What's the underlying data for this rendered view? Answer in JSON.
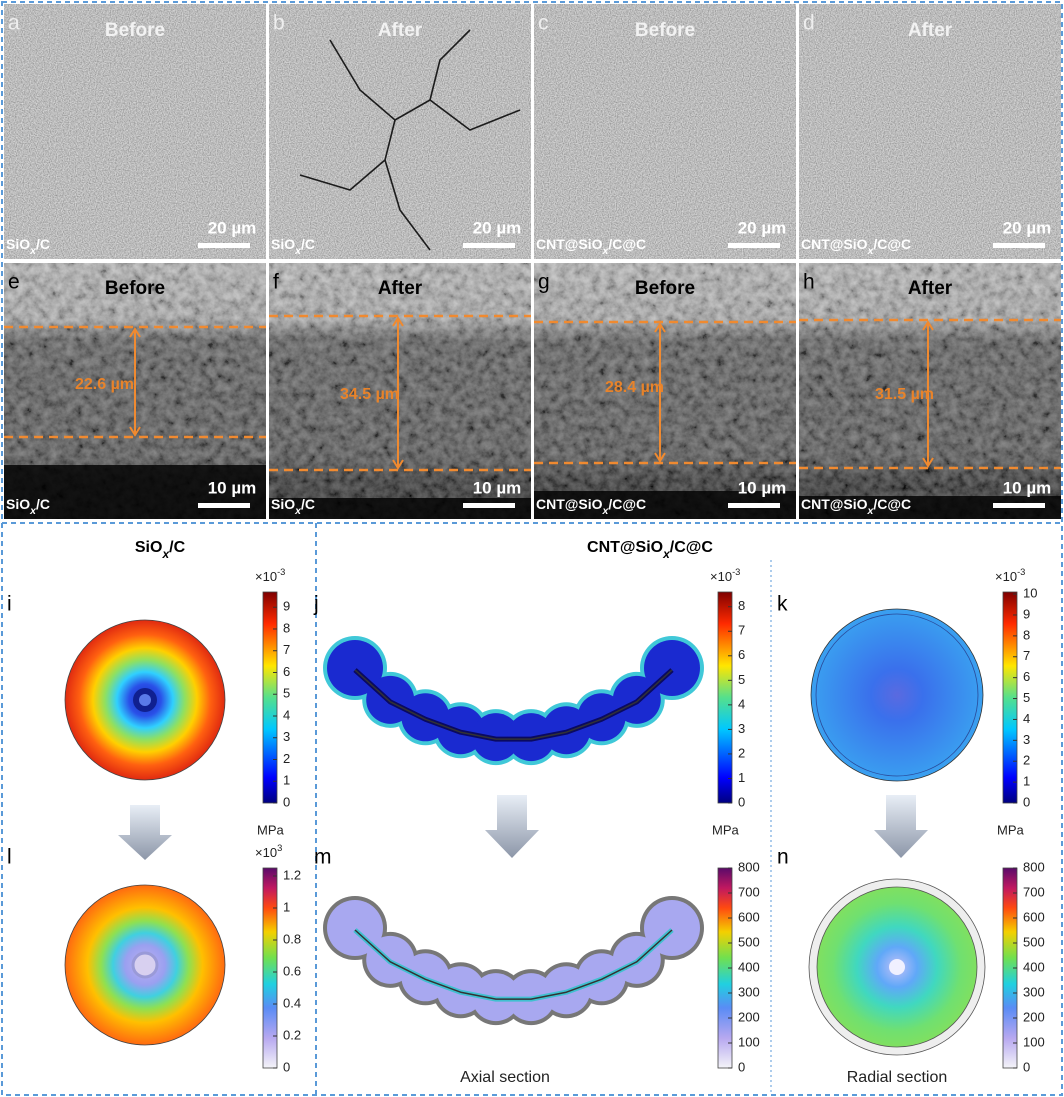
{
  "sem_panels": [
    {
      "letter": "a",
      "state": "Before",
      "sample": {
        "pre": "SiO",
        "sub": "x",
        "post": "/C"
      },
      "scale_bar": "20 µm"
    },
    {
      "letter": "b",
      "state": "After",
      "sample": {
        "pre": "SiO",
        "sub": "x",
        "post": "/C"
      },
      "scale_bar": "20 µm"
    },
    {
      "letter": "c",
      "state": "Before",
      "sample": {
        "pre": "CNT@SiO",
        "sub": "x",
        "post": "/C@C"
      },
      "scale_bar": "20 µm"
    },
    {
      "letter": "d",
      "state": "After",
      "sample": {
        "pre": "CNT@SiO",
        "sub": "x",
        "post": "/C@C"
      },
      "scale_bar": "20 µm"
    },
    {
      "letter": "e",
      "state": "Before",
      "sample": {
        "pre": "SiO",
        "sub": "x",
        "post": "/C"
      },
      "scale_bar": "10 µm",
      "thickness": "22.6 µm"
    },
    {
      "letter": "f",
      "state": "After",
      "sample": {
        "pre": "SiO",
        "sub": "x",
        "post": "/C"
      },
      "scale_bar": "10 µm",
      "thickness": "34.5 µm"
    },
    {
      "letter": "g",
      "state": "Before",
      "sample": {
        "pre": "CNT@SiO",
        "sub": "x",
        "post": "/C@C"
      },
      "scale_bar": "10 µm",
      "thickness": "28.4 µm"
    },
    {
      "letter": "h",
      "state": "After",
      "sample": {
        "pre": "CNT@SiO",
        "sub": "x",
        "post": "/C@C"
      },
      "scale_bar": "10 µm",
      "thickness": "31.5 µm"
    }
  ],
  "simulation": {
    "group_titles": [
      {
        "pre": "SiO",
        "sub": "x",
        "post": "/C"
      },
      {
        "pre": "CNT@SiO",
        "sub": "x",
        "post": "/C@C"
      }
    ],
    "panels": [
      {
        "letter": "i",
        "colorbar": {
          "lim": [
            0,
            9.7
          ],
          "ticks": [
            0,
            1,
            2,
            3,
            4,
            5,
            6,
            7,
            8,
            9
          ],
          "multiplier": {
            "base": "×10",
            "exp": "-3"
          },
          "unit": "MPa"
        }
      },
      {
        "letter": "j",
        "colorbar": {
          "lim": [
            0,
            8.6
          ],
          "ticks": [
            0,
            1,
            2,
            3,
            4,
            5,
            6,
            7,
            8
          ],
          "multiplier": {
            "base": "×10",
            "exp": "-3"
          },
          "unit": "MPa"
        }
      },
      {
        "letter": "k",
        "colorbar": {
          "lim": [
            0,
            10.1
          ],
          "ticks": [
            0,
            1,
            2,
            3,
            4,
            5,
            6,
            7,
            8,
            9,
            10
          ],
          "multiplier": {
            "base": "×10",
            "exp": "-3"
          },
          "unit": "MPa"
        }
      },
      {
        "letter": "l",
        "colorbar": {
          "lim": [
            0,
            1.25
          ],
          "ticks": [
            0,
            0.2,
            0.4,
            0.6,
            0.8,
            1,
            1.2
          ],
          "multiplier": {
            "base": "×10",
            "exp": "3"
          }
        }
      },
      {
        "letter": "m",
        "colorbar": {
          "lim": [
            0,
            800
          ],
          "ticks": [
            0,
            100,
            200,
            300,
            400,
            500,
            600,
            700,
            800
          ]
        },
        "caption": "Axial section"
      },
      {
        "letter": "n",
        "colorbar": {
          "lim": [
            0,
            800
          ],
          "ticks": [
            0,
            100,
            200,
            300,
            400,
            500,
            600,
            700,
            800
          ]
        },
        "caption": "Radial section"
      }
    ]
  }
}
